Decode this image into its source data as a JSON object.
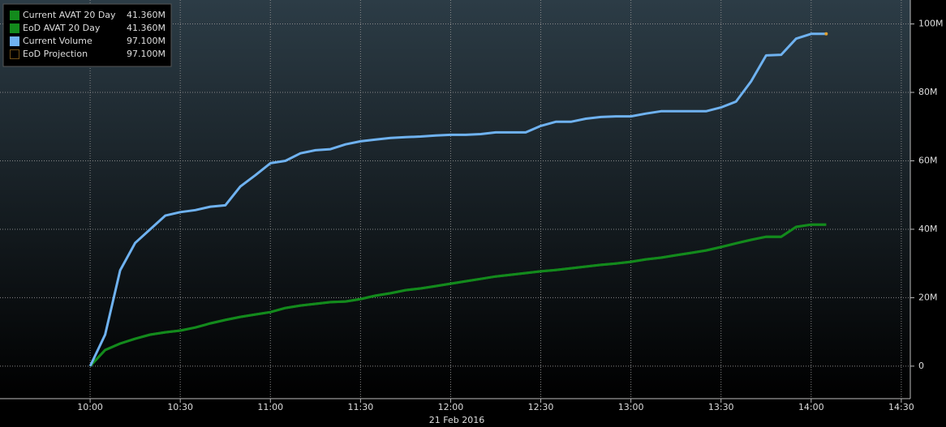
{
  "chart_data": {
    "type": "line",
    "x_label": "21 Feb 2016",
    "x": [
      "10:00",
      "10:05",
      "10:10",
      "10:15",
      "10:20",
      "10:25",
      "10:30",
      "10:35",
      "10:40",
      "10:45",
      "10:50",
      "10:55",
      "11:00",
      "11:05",
      "11:10",
      "11:15",
      "11:20",
      "11:25",
      "11:30",
      "11:35",
      "11:40",
      "11:45",
      "11:50",
      "11:55",
      "12:00",
      "12:05",
      "12:10",
      "12:15",
      "12:20",
      "12:25",
      "12:30",
      "12:35",
      "12:40",
      "12:45",
      "12:50",
      "12:55",
      "13:00",
      "13:05",
      "13:10",
      "13:15",
      "13:20",
      "13:25",
      "13:30",
      "13:35",
      "13:40",
      "13:45",
      "13:50",
      "13:55",
      "14:00",
      "14:05"
    ],
    "series": [
      {
        "name": "Current AVAT 20 Day",
        "color": "#138a1c",
        "legend_value": "41.360M",
        "values": [
          0,
          4.7,
          6.6,
          8,
          9.2,
          9.9,
          10.4,
          11.3,
          12.5,
          13.5,
          14.4,
          15.1,
          15.8,
          17,
          17.7,
          18.2,
          18.7,
          18.9,
          19.6,
          20.6,
          21.3,
          22.2,
          22.7,
          23.4,
          24.1,
          24.8,
          25.5,
          26.2,
          26.7,
          27.2,
          27.7,
          28.1,
          28.6,
          29.1,
          29.6,
          30,
          30.5,
          31.2,
          31.7,
          32.4,
          33.1,
          33.8,
          34.8,
          35.9,
          36.9,
          37.8,
          37.8,
          40.7,
          41.36,
          41.36
        ]
      },
      {
        "name": "EoD AVAT 20 Day",
        "color": "#138a1c",
        "legend_value": "41.360M",
        "values": [
          0,
          4.7,
          6.6,
          8,
          9.2,
          9.9,
          10.4,
          11.3,
          12.5,
          13.5,
          14.4,
          15.1,
          15.8,
          17,
          17.7,
          18.2,
          18.7,
          18.9,
          19.6,
          20.6,
          21.3,
          22.2,
          22.7,
          23.4,
          24.1,
          24.8,
          25.5,
          26.2,
          26.7,
          27.2,
          27.7,
          28.1,
          28.6,
          29.1,
          29.6,
          30,
          30.5,
          31.2,
          31.7,
          32.4,
          33.1,
          33.8,
          34.8,
          35.9,
          36.9,
          37.8,
          37.8,
          40.7,
          41.36,
          41.36
        ]
      },
      {
        "name": "Current Volume",
        "color": "#6fb2f0",
        "legend_value": "97.100M",
        "values": [
          0,
          9.2,
          28,
          36,
          40,
          44,
          45,
          45.6,
          46.6,
          47,
          52.5,
          55.8,
          59.3,
          60,
          62.2,
          63.1,
          63.4,
          64.8,
          65.7,
          66.2,
          66.7,
          66.9,
          67.1,
          67.4,
          67.6,
          67.6,
          67.8,
          68.3,
          68.3,
          68.3,
          70.2,
          71.4,
          71.4,
          72.3,
          72.8,
          73,
          73,
          73.8,
          74.5,
          74.5,
          74.5,
          74.5,
          75.6,
          77.3,
          83.2,
          90.8,
          91,
          95.7,
          97.1,
          97.1
        ]
      },
      {
        "name": "EoD Projection",
        "color": "#e0a030",
        "legend_value": "97.100M",
        "swatch": "dotted",
        "x": [
          "14:05"
        ],
        "values": [
          97.1
        ]
      }
    ],
    "xlim": [
      "09:30",
      "14:33"
    ],
    "xticks": [
      "10:00",
      "10:30",
      "11:00",
      "11:30",
      "12:00",
      "12:30",
      "13:00",
      "13:30",
      "14:00",
      "14:30"
    ],
    "ylim": [
      -9.5,
      107
    ],
    "yticks": [
      0,
      {
        "value": 20,
        "label": "20M"
      },
      {
        "value": 40,
        "label": "40M"
      },
      {
        "value": 60,
        "label": "60M"
      },
      {
        "value": 80,
        "label": "80M"
      },
      {
        "value": 100,
        "label": "100M"
      }
    ],
    "grid": true
  }
}
